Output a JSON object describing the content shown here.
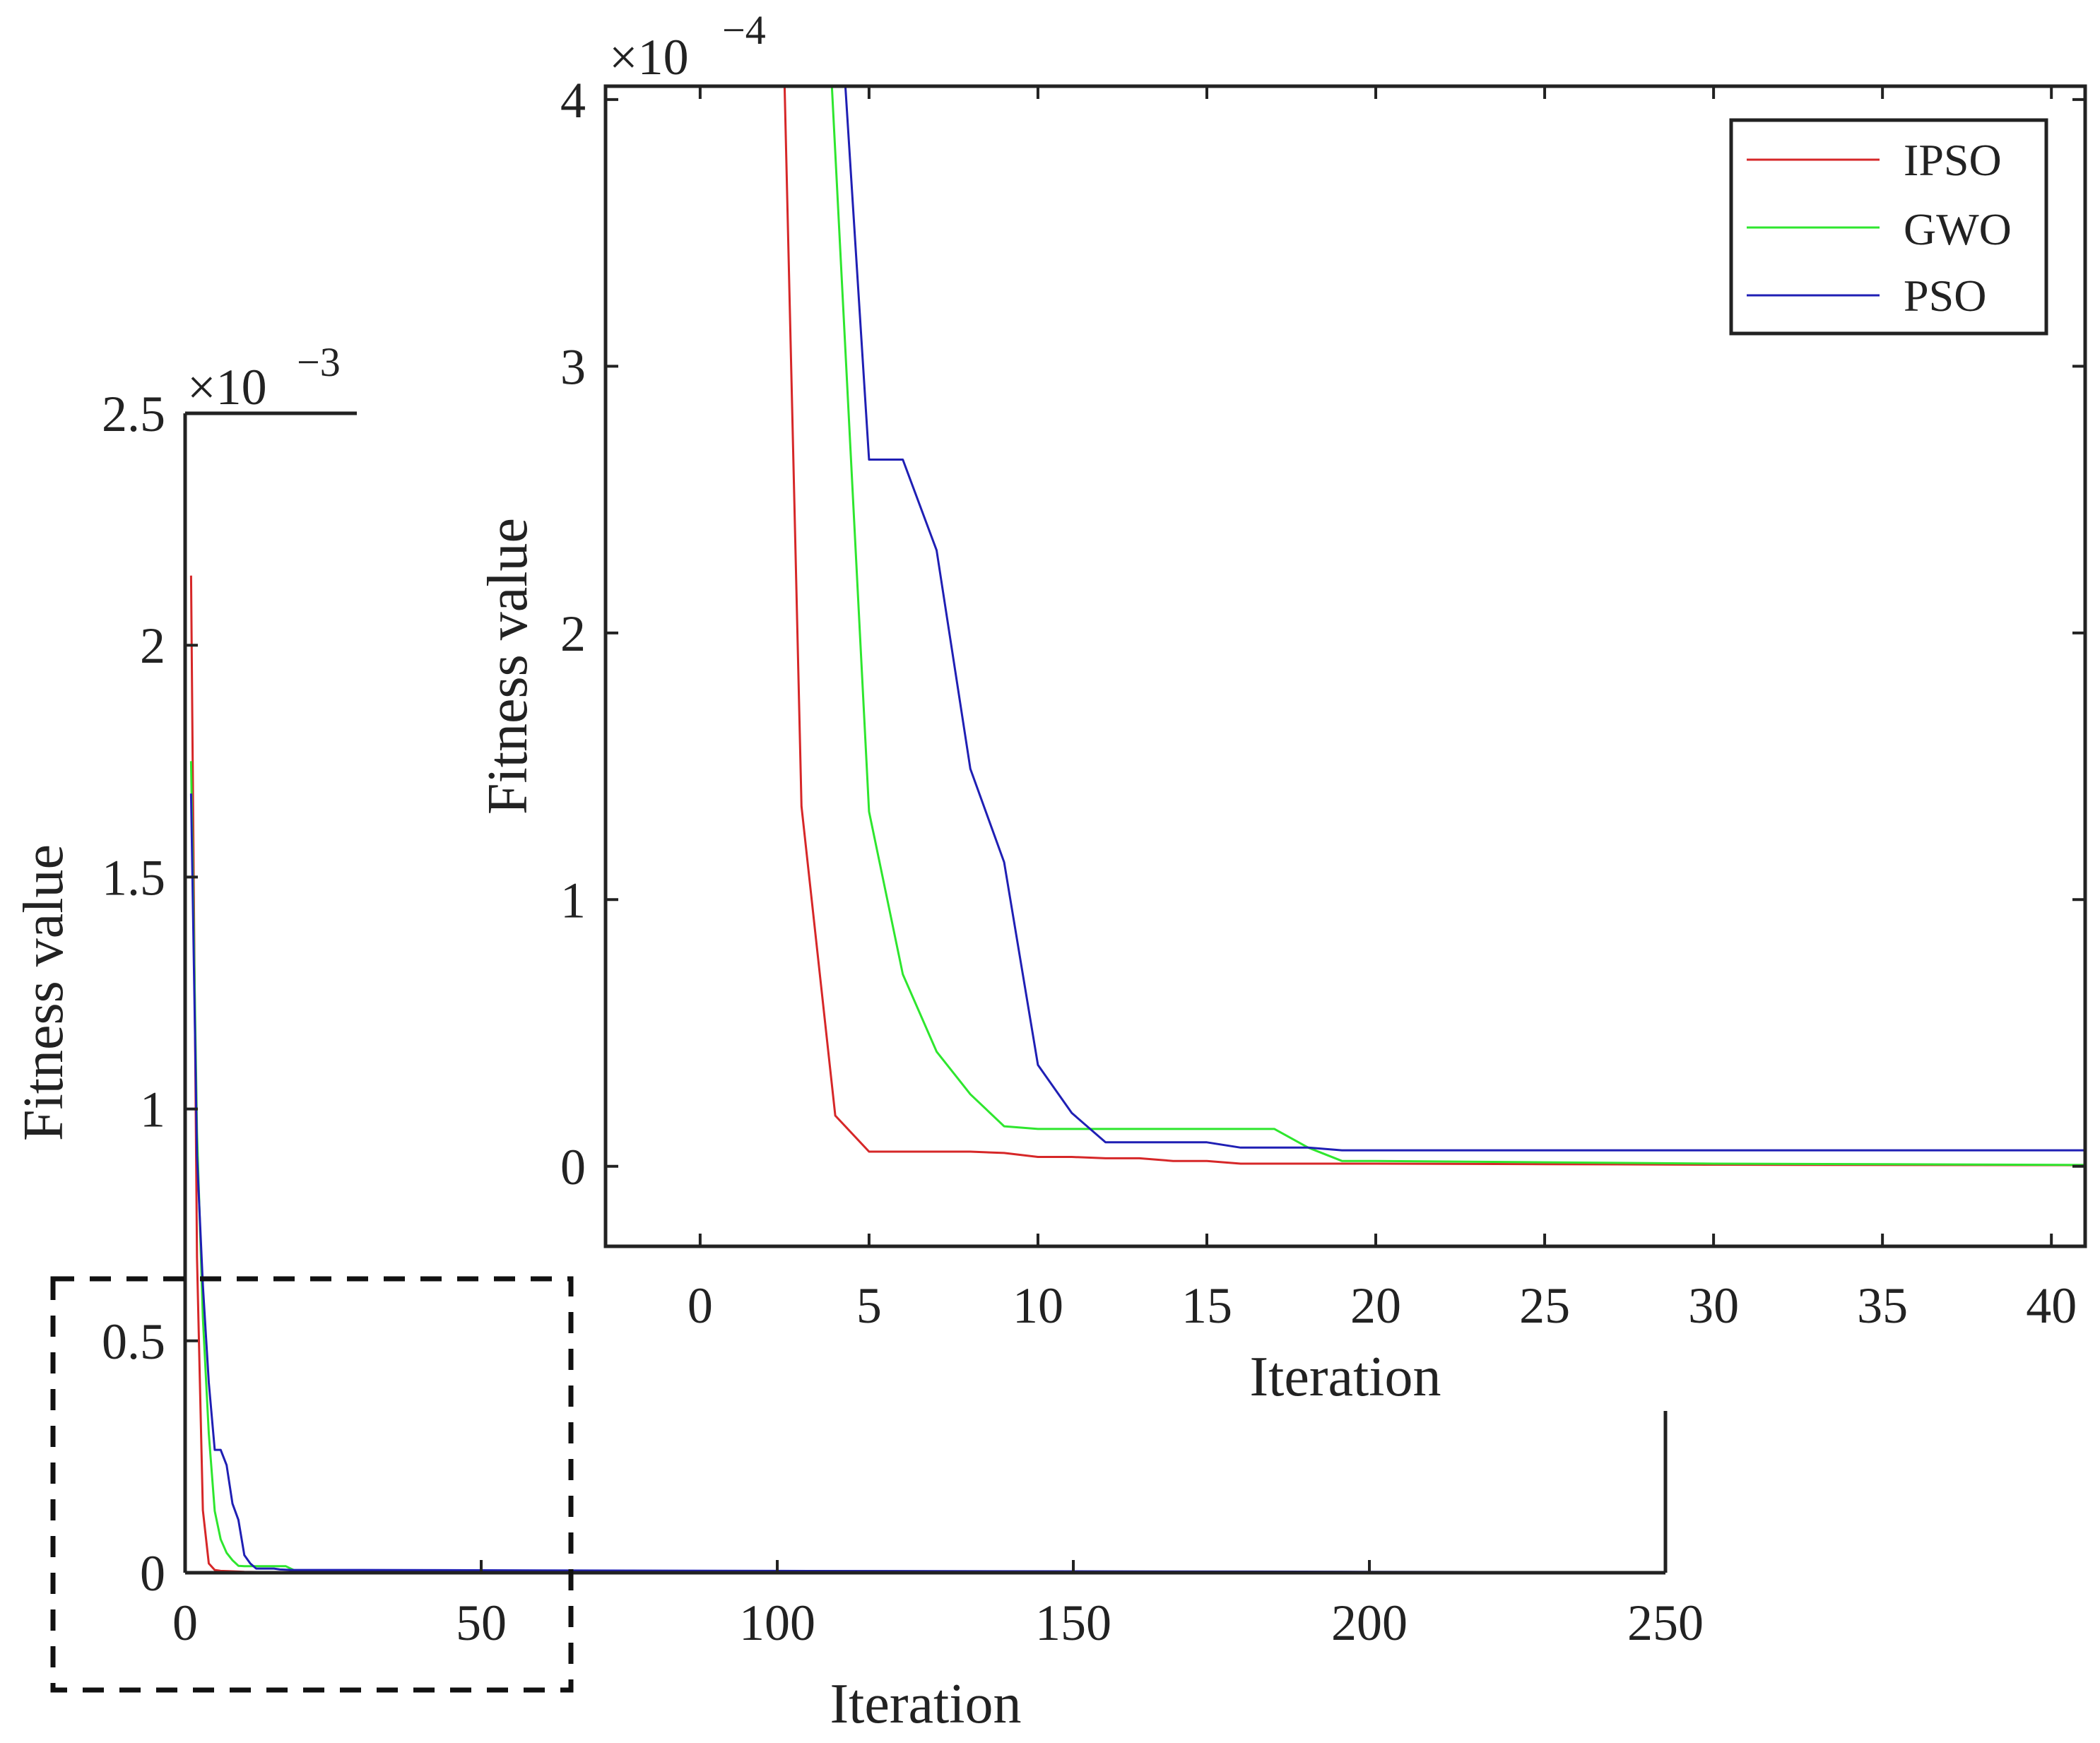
{
  "colors": {
    "IPSO": "#d62728",
    "GWO": "#2ee62e",
    "PSO": "#1f1fb4",
    "axis": "#222222",
    "zoom_box": "#111111"
  },
  "chart_data": [
    {
      "id": "main",
      "type": "line",
      "xlabel": "Iteration",
      "ylabel": "Fitness value",
      "exponent_label": "×10",
      "exponent_power": "−3",
      "y_scale": 0.001,
      "xlim": [
        0,
        250
      ],
      "ylim": [
        0,
        2.5
      ],
      "xticks": [
        0,
        50,
        100,
        150,
        200,
        250
      ],
      "xtick_labels": [
        "0",
        "50",
        "100",
        "150",
        "200",
        "250"
      ],
      "yticks": [
        0,
        0.5,
        1,
        1.5,
        2,
        2.5
      ],
      "ytick_labels": [
        "0",
        "0.5",
        "1",
        "1.5",
        "2",
        "2.5"
      ],
      "series": [
        {
          "name": "IPSO",
          "x": [
            1,
            2,
            3,
            4,
            5,
            6,
            8,
            10,
            15,
            20,
            50,
            100,
            150,
            200,
            233
          ],
          "y": [
            2.15,
            0.68,
            0.135,
            0.02,
            0.006,
            0.004,
            0.003,
            0.002,
            0.001,
            0.0005,
            0.0004,
            0.0003,
            0.0002,
            0.0001,
            0.0001
          ]
        },
        {
          "name": "GWO",
          "x": [
            1,
            2,
            3,
            4,
            5,
            6,
            7,
            8,
            9,
            10,
            15,
            17,
            19,
            30,
            70,
            100,
            150,
            200,
            233
          ],
          "y": [
            1.75,
            0.95,
            0.55,
            0.3,
            0.133,
            0.072,
            0.043,
            0.027,
            0.015,
            0.014,
            0.014,
            0.014,
            0.002,
            0.001,
            0.0008,
            0.0005,
            0.0003,
            0.0002,
            0.0001
          ]
        },
        {
          "name": "PSO",
          "x": [
            1,
            2,
            3,
            4,
            5,
            6,
            7,
            8,
            9,
            10,
            11,
            12,
            15,
            16,
            18,
            30,
            60,
            100,
            150,
            200,
            233
          ],
          "y": [
            1.68,
            0.9,
            0.62,
            0.41,
            0.265,
            0.265,
            0.232,
            0.149,
            0.114,
            0.038,
            0.02,
            0.009,
            0.009,
            0.007,
            0.006,
            0.006,
            0.005,
            0.004,
            0.003,
            0.002,
            0.001
          ]
        }
      ]
    },
    {
      "id": "inset",
      "type": "line",
      "xlabel": "Iteration",
      "ylabel": "Fitness value",
      "exponent_label": "×10",
      "exponent_power": "−4",
      "y_scale": 0.0001,
      "xlim": [
        -2.8,
        41
      ],
      "ylim": [
        -0.3,
        4.05
      ],
      "xticks": [
        0,
        5,
        10,
        15,
        20,
        25,
        30,
        35,
        40
      ],
      "xtick_labels": [
        "0",
        "5",
        "10",
        "15",
        "20",
        "25",
        "30",
        "35",
        "40"
      ],
      "yticks": [
        0,
        1,
        2,
        3,
        4
      ],
      "ytick_labels": [
        "0",
        "1",
        "2",
        "3",
        "4"
      ],
      "legend": {
        "position": "top-right",
        "entries": [
          "IPSO",
          "GWO",
          "PSO"
        ]
      },
      "series": [
        {
          "name": "IPSO",
          "x": [
            2.5,
            3,
            4,
            5,
            6,
            7,
            8,
            9,
            10,
            11,
            12,
            13,
            14,
            15,
            16,
            17,
            18,
            19,
            20,
            25,
            30,
            35,
            41
          ],
          "y": [
            4.05,
            1.35,
            0.19,
            0.055,
            0.055,
            0.055,
            0.055,
            0.05,
            0.035,
            0.035,
            0.03,
            0.03,
            0.02,
            0.02,
            0.01,
            0.01,
            0.01,
            0.01,
            0.01,
            0.008,
            0.006,
            0.005,
            0.004
          ]
        },
        {
          "name": "GWO",
          "x": [
            3.9,
            5,
            6,
            7,
            8,
            9,
            10,
            11,
            12,
            13,
            14,
            15,
            16,
            17,
            18,
            19,
            20,
            25,
            30,
            35,
            41
          ],
          "y": [
            4.05,
            1.33,
            0.72,
            0.43,
            0.27,
            0.15,
            0.14,
            0.14,
            0.14,
            0.14,
            0.14,
            0.14,
            0.14,
            0.14,
            0.07,
            0.02,
            0.02,
            0.015,
            0.01,
            0.008,
            0.005
          ]
        },
        {
          "name": "PSO",
          "x": [
            4.3,
            5,
            6,
            7,
            8,
            9,
            10,
            11,
            12,
            13,
            14,
            15,
            16,
            17,
            18,
            19,
            20,
            25,
            30,
            35,
            41
          ],
          "y": [
            4.05,
            2.65,
            2.65,
            2.31,
            1.49,
            1.14,
            0.38,
            0.2,
            0.09,
            0.09,
            0.09,
            0.09,
            0.07,
            0.07,
            0.07,
            0.06,
            0.06,
            0.06,
            0.06,
            0.06,
            0.06
          ]
        }
      ]
    }
  ]
}
